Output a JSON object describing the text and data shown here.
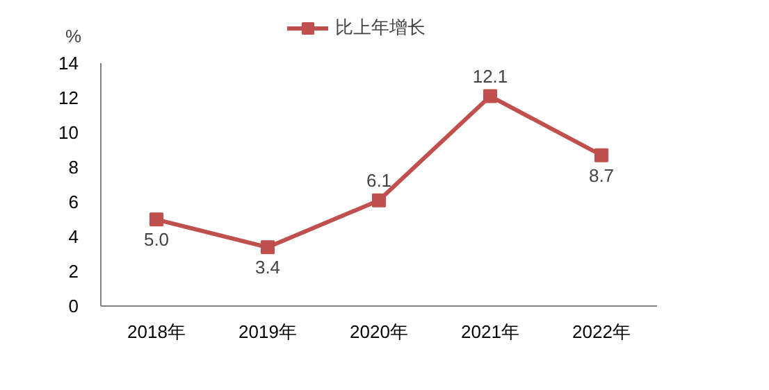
{
  "chart_data": {
    "type": "line",
    "ylabel": "%",
    "categories": [
      "2018年",
      "2019年",
      "2020年",
      "2021年",
      "2022年"
    ],
    "series": [
      {
        "name": "比上年增长",
        "color": "#c0504d",
        "values": [
          5.0,
          3.4,
          6.1,
          12.1,
          8.7
        ]
      }
    ],
    "value_labels": [
      "5.0",
      "3.4",
      "6.1",
      "12.1",
      "8.7"
    ],
    "ylim": [
      0,
      14
    ],
    "yticks": [
      0,
      2,
      4,
      6,
      8,
      10,
      12,
      14
    ],
    "grid": false,
    "legend": "top",
    "marker": "square",
    "line_style": "solid"
  }
}
